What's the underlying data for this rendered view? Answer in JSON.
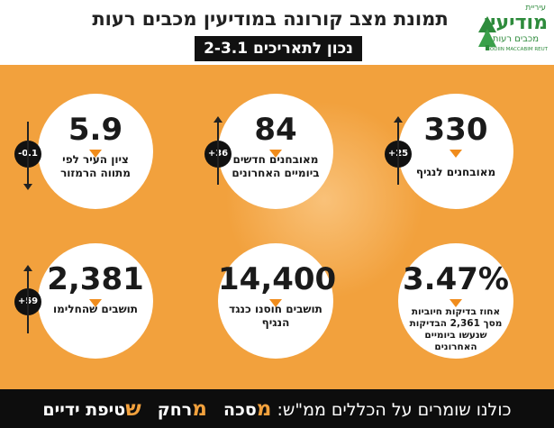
{
  "header": {
    "title": "תמונת מצב קורונה במודיעין מכבים רעות",
    "date_range": "נכון לתאריכים 2-3.1"
  },
  "logo": {
    "top_text": "עיריית",
    "main_text": "מודיעין",
    "sub_text": "מכבים רעות",
    "english_text": "MODIIN MACCABIM REUT",
    "mark_color": "#2e8b3c"
  },
  "stats": [
    {
      "value": "330",
      "label": "מאובחנים לנגיף",
      "change": "+25",
      "direction": "up"
    },
    {
      "value": "84",
      "label": "מאובחנים חדשים ביומיים האחרונים",
      "change": "+36",
      "direction": "up"
    },
    {
      "value": "5.9",
      "label": "ציון העיר לפי מתווה הרמזור",
      "change": "-0.1",
      "direction": "down"
    },
    {
      "value": "3.47%",
      "label": "אחוז בדיקות חיוביות מסך 2,361 הבדיקות שנעשו ביומיים האחרונים"
    },
    {
      "value": "14,400",
      "label": "תושבים חוסנו כנגד הנגיף"
    },
    {
      "value": "2,381",
      "label": "תושבים שהחלימו",
      "change": "+59",
      "direction": "up"
    }
  ],
  "footer": {
    "intro": "כולנו שומרים על הכללים ממ\"ש:",
    "rule1_letter": "מ",
    "rule1_rest": "סכה",
    "rule2_letter": "מ",
    "rule2_rest": "רחק",
    "rule3_letter": "ש",
    "rule3_rest": "טיפת ידיים"
  },
  "colors": {
    "background": "#f2a13d",
    "accent": "#f08c1c",
    "dark": "#111111",
    "brand_green": "#2e8b3c"
  }
}
